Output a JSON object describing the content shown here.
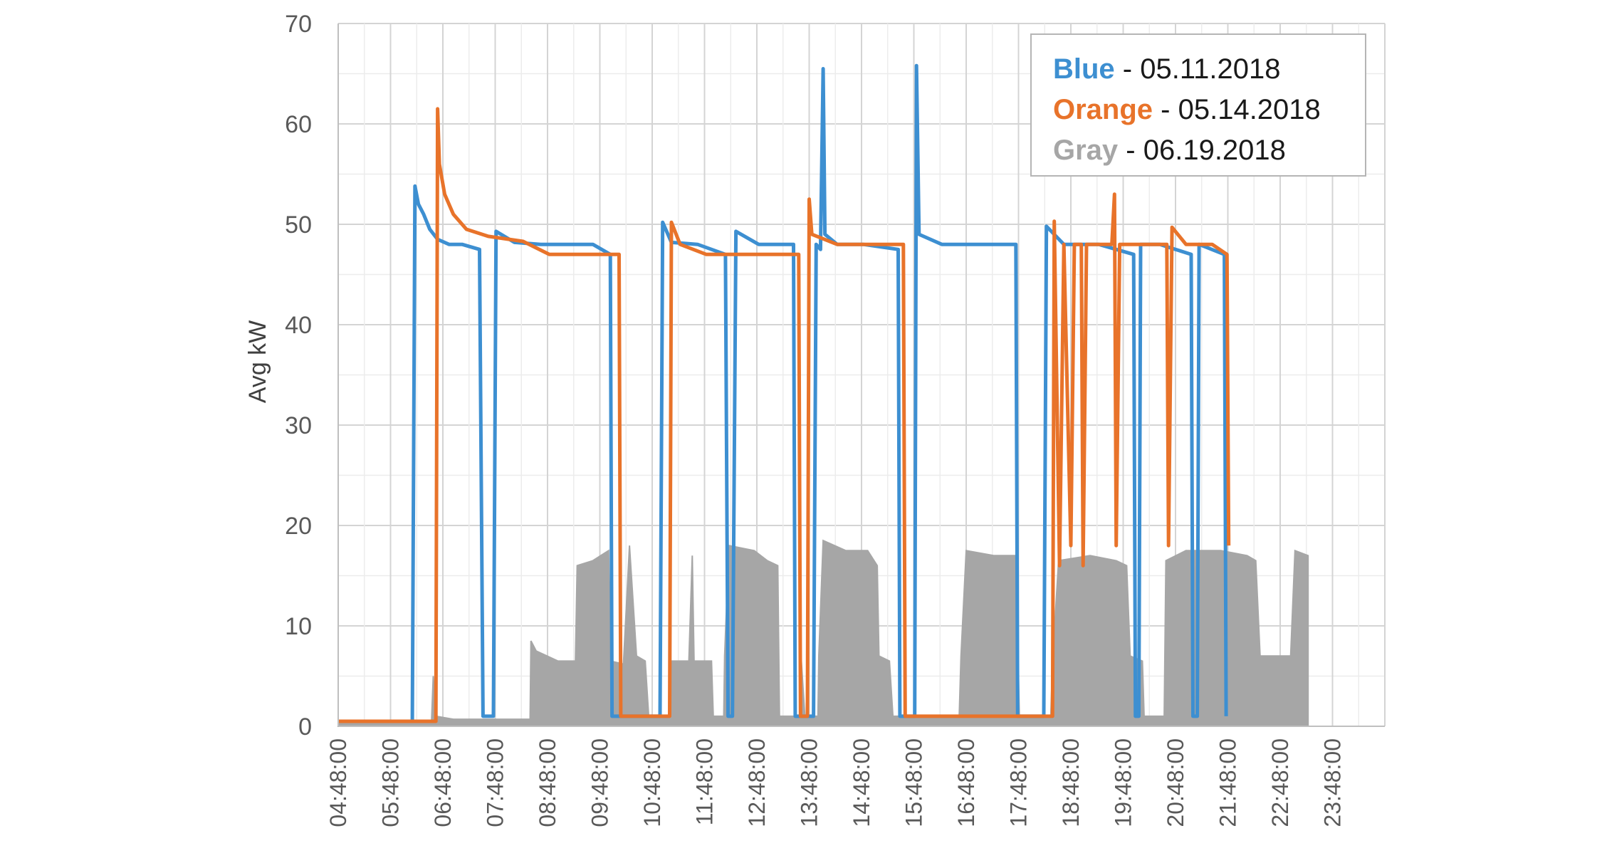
{
  "chart_data": {
    "type": "line",
    "title": "",
    "xlabel": "",
    "ylabel": "Avg kW",
    "ylim": [
      0,
      70
    ],
    "yticks": [
      0,
      10,
      20,
      30,
      40,
      50,
      60,
      70
    ],
    "xticks": [
      "04:48:00",
      "05:48:00",
      "06:48:00",
      "07:48:00",
      "08:48:00",
      "09:48:00",
      "10:48:00",
      "11:48:00",
      "12:48:00",
      "13:48:00",
      "14:48:00",
      "15:48:00",
      "16:48:00",
      "17:48:00",
      "18:48:00",
      "19:48:00",
      "20:48:00",
      "21:48:00",
      "22:48:00",
      "23:48:00"
    ],
    "xlim": [
      "04:48:00",
      "24:48:00"
    ],
    "grid": true,
    "legend_position": "top-right",
    "legend": [
      {
        "name": "Blue",
        "separator": " - ",
        "date": "05.11.2018",
        "color": "#3d8fd1"
      },
      {
        "name": "Orange",
        "separator": " - ",
        "date": "05.14.2018",
        "color": "#e8732a"
      },
      {
        "name": "Gray",
        "separator": " - ",
        "date": "06.19.2018",
        "color": "#a6a6a6"
      }
    ],
    "series": [
      {
        "name": "Blue",
        "color": "#3d8fd1",
        "points": [
          [
            "04:48:00",
            0.5
          ],
          [
            "06:13:00",
            0.5
          ],
          [
            "06:16:00",
            53.8
          ],
          [
            "06:20:00",
            52
          ],
          [
            "06:26:00",
            51
          ],
          [
            "06:33:00",
            49.5
          ],
          [
            "06:42:00",
            48.5
          ],
          [
            "06:55:00",
            48
          ],
          [
            "07:10:00",
            48
          ],
          [
            "07:30:00",
            47.5
          ],
          [
            "07:34:00",
            1
          ],
          [
            "07:46:00",
            1
          ],
          [
            "07:49:00",
            49.3
          ],
          [
            "08:10:00",
            48.2
          ],
          [
            "08:40:00",
            48
          ],
          [
            "09:10:00",
            48
          ],
          [
            "09:40:00",
            48
          ],
          [
            "10:00:00",
            47
          ],
          [
            "10:02:00",
            1
          ],
          [
            "10:57:00",
            1
          ],
          [
            "11:00:00",
            50.2
          ],
          [
            "11:10:00",
            48.2
          ],
          [
            "11:40:00",
            48
          ],
          [
            "12:12:00",
            47
          ],
          [
            "12:15:00",
            1
          ],
          [
            "12:20:00",
            1
          ],
          [
            "12:24:00",
            49.3
          ],
          [
            "12:50:00",
            48
          ],
          [
            "13:20:00",
            48
          ],
          [
            "13:30:00",
            48
          ],
          [
            "13:32:00",
            1
          ],
          [
            "13:53:00",
            1
          ],
          [
            "13:56:00",
            48
          ],
          [
            "14:01:00",
            47.5
          ],
          [
            "14:04:00",
            65.5
          ],
          [
            "14:06:00",
            49
          ],
          [
            "14:20:00",
            48
          ],
          [
            "14:50:00",
            48
          ],
          [
            "15:30:00",
            47.5
          ],
          [
            "15:32:00",
            1
          ],
          [
            "15:49:00",
            1
          ],
          [
            "15:51:00",
            65.8
          ],
          [
            "15:54:00",
            49
          ],
          [
            "16:20:00",
            48
          ],
          [
            "17:00:00",
            48
          ],
          [
            "17:45:00",
            48
          ],
          [
            "17:47:00",
            1
          ],
          [
            "18:17:00",
            1
          ],
          [
            "18:20:00",
            49.8
          ],
          [
            "18:40:00",
            48
          ],
          [
            "19:20:00",
            48
          ],
          [
            "20:00:00",
            47
          ],
          [
            "20:02:00",
            1
          ],
          [
            "20:06:00",
            1
          ],
          [
            "20:08:00",
            48
          ],
          [
            "20:30:00",
            48
          ],
          [
            "21:06:00",
            47
          ],
          [
            "21:08:00",
            1
          ],
          [
            "21:13:00",
            1
          ],
          [
            "21:15:00",
            48
          ],
          [
            "21:44:00",
            47
          ],
          [
            "21:46:00",
            1
          ]
        ]
      },
      {
        "name": "Orange",
        "color": "#e8732a",
        "points": [
          [
            "04:48:00",
            0.5
          ],
          [
            "06:40:00",
            0.5
          ],
          [
            "06:42:00",
            61.5
          ],
          [
            "06:44:00",
            56
          ],
          [
            "06:50:00",
            53
          ],
          [
            "07:00:00",
            51
          ],
          [
            "07:15:00",
            49.5
          ],
          [
            "07:40:00",
            48.8
          ],
          [
            "08:20:00",
            48.3
          ],
          [
            "08:50:00",
            47
          ],
          [
            "09:20:00",
            47
          ],
          [
            "09:50:00",
            47
          ],
          [
            "10:10:00",
            47
          ],
          [
            "10:12:00",
            1
          ],
          [
            "11:08:00",
            1
          ],
          [
            "11:10:00",
            50.2
          ],
          [
            "11:20:00",
            48
          ],
          [
            "11:50:00",
            47
          ],
          [
            "12:20:00",
            47
          ],
          [
            "12:50:00",
            47
          ],
          [
            "13:20:00",
            47
          ],
          [
            "13:36:00",
            47
          ],
          [
            "13:38:00",
            1
          ],
          [
            "13:46:00",
            1
          ],
          [
            "13:48:00",
            52.5
          ],
          [
            "13:51:00",
            49
          ],
          [
            "14:20:00",
            48
          ],
          [
            "14:50:00",
            48
          ],
          [
            "15:20:00",
            48
          ],
          [
            "15:36:00",
            48
          ],
          [
            "15:38:00",
            1
          ],
          [
            "18:27:00",
            1
          ],
          [
            "18:29:00",
            50.3
          ],
          [
            "18:35:00",
            16
          ],
          [
            "18:40:00",
            48
          ],
          [
            "18:48:00",
            18
          ],
          [
            "18:52:00",
            48
          ],
          [
            "19:00:00",
            48
          ],
          [
            "19:02:00",
            16
          ],
          [
            "19:06:00",
            48
          ],
          [
            "19:35:00",
            48
          ],
          [
            "19:38:00",
            53
          ],
          [
            "19:40:00",
            18
          ],
          [
            "19:44:00",
            48
          ],
          [
            "20:10:00",
            48
          ],
          [
            "20:38:00",
            48
          ],
          [
            "20:40:00",
            18
          ],
          [
            "20:44:00",
            49.7
          ],
          [
            "21:00:00",
            48
          ],
          [
            "21:30:00",
            48
          ],
          [
            "21:47:00",
            47
          ],
          [
            "21:49:00",
            18
          ]
        ]
      },
      {
        "name": "Gray",
        "color": "#a6a6a6",
        "points": [
          [
            "04:48:00",
            0.3
          ],
          [
            "05:40:00",
            0.5
          ],
          [
            "06:35:00",
            0.5
          ],
          [
            "06:37:00",
            5
          ],
          [
            "06:40:00",
            1
          ],
          [
            "07:00:00",
            0.7
          ],
          [
            "08:28:00",
            0.7
          ],
          [
            "08:29:00",
            8.5
          ],
          [
            "08:35:00",
            7.5
          ],
          [
            "09:00:00",
            6.5
          ],
          [
            "09:20:00",
            6.5
          ],
          [
            "09:22:00",
            16
          ],
          [
            "09:40:00",
            16.5
          ],
          [
            "09:58:00",
            17.5
          ],
          [
            "10:00:00",
            6.5
          ],
          [
            "10:15:00",
            6.2
          ],
          [
            "10:22:00",
            18
          ],
          [
            "10:30:00",
            7
          ],
          [
            "10:40:00",
            6.5
          ],
          [
            "10:44:00",
            1
          ],
          [
            "11:08:00",
            1
          ],
          [
            "11:10:00",
            6.5
          ],
          [
            "11:30:00",
            6.5
          ],
          [
            "11:34:00",
            17
          ],
          [
            "11:36:00",
            6.5
          ],
          [
            "11:56:00",
            6.5
          ],
          [
            "11:58:00",
            1
          ],
          [
            "12:10:00",
            1
          ],
          [
            "12:11:00",
            7
          ],
          [
            "12:16:00",
            18
          ],
          [
            "12:45:00",
            17.5
          ],
          [
            "13:00:00",
            16.5
          ],
          [
            "13:12:00",
            16
          ],
          [
            "13:14:00",
            1
          ],
          [
            "13:38:00",
            1
          ],
          [
            "13:39:00",
            6.5
          ],
          [
            "13:43:00",
            1
          ],
          [
            "13:58:00",
            1
          ],
          [
            "13:59:00",
            7
          ],
          [
            "14:04:00",
            18.5
          ],
          [
            "14:30:00",
            17.5
          ],
          [
            "14:55:00",
            17.5
          ],
          [
            "15:06:00",
            16
          ],
          [
            "15:08:00",
            7
          ],
          [
            "15:20:00",
            6.5
          ],
          [
            "15:24:00",
            1
          ],
          [
            "16:40:00",
            1
          ],
          [
            "16:42:00",
            7
          ],
          [
            "16:48:00",
            17.5
          ],
          [
            "17:20:00",
            17
          ],
          [
            "17:45:00",
            17
          ],
          [
            "17:49:00",
            1
          ],
          [
            "18:25:00",
            1
          ],
          [
            "18:27:00",
            6.5
          ],
          [
            "18:34:00",
            16.5
          ],
          [
            "19:10:00",
            17
          ],
          [
            "19:40:00",
            16.5
          ],
          [
            "19:52:00",
            16
          ],
          [
            "19:56:00",
            7
          ],
          [
            "20:10:00",
            6.5
          ],
          [
            "20:12:00",
            1
          ],
          [
            "20:35:00",
            1
          ],
          [
            "20:37:00",
            16.5
          ],
          [
            "21:00:00",
            17.5
          ],
          [
            "21:40:00",
            17.5
          ],
          [
            "22:10:00",
            17
          ],
          [
            "22:20:00",
            16.5
          ],
          [
            "22:25:00",
            7
          ],
          [
            "22:50:00",
            7
          ],
          [
            "23:00:00",
            7
          ],
          [
            "23:05:00",
            17.5
          ],
          [
            "23:20:00",
            17
          ]
        ]
      }
    ]
  }
}
